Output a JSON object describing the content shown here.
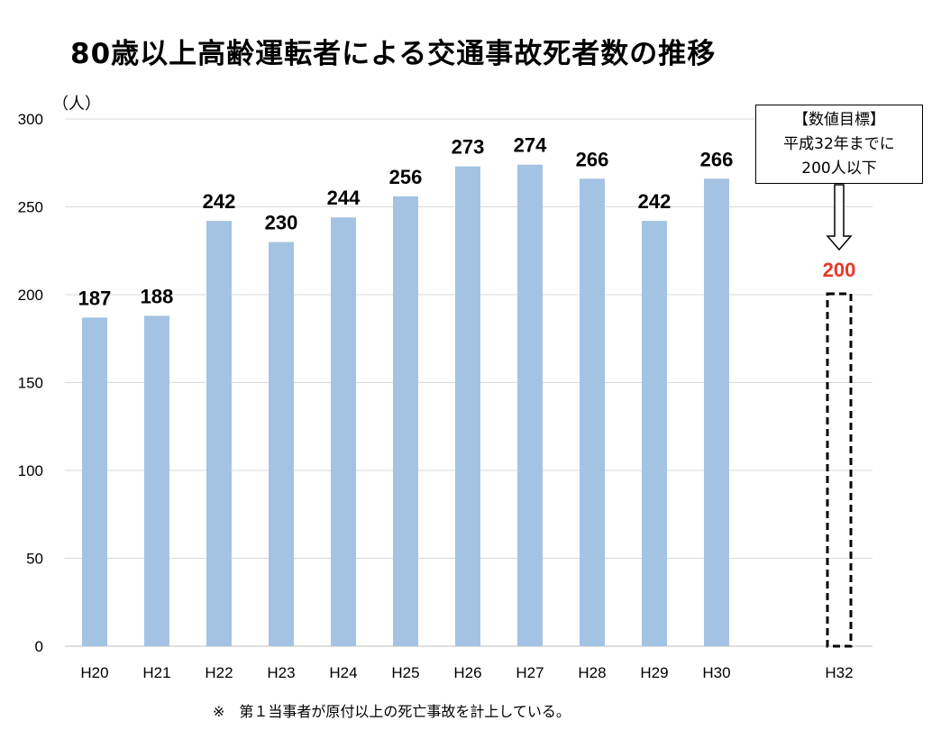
{
  "title": "80歳以上高齢運転者による交通事故死者数の推移",
  "unit_label": "（人）",
  "footnote": "※　第１当事者が原付以上の死亡事故を計上している。",
  "target_box": {
    "line1": "【数値目標】",
    "line2": "平成32年までに",
    "line3": "200人以下"
  },
  "colors": {
    "bar": "#a4c3e2",
    "target": "#e8382a",
    "grid": "#d9d9d9"
  },
  "chart_data": {
    "type": "bar",
    "title": "80歳以上高齢運転者による交通事故死者数の推移",
    "ylabel": "（人）",
    "categories": [
      "H20",
      "H21",
      "H22",
      "H23",
      "H24",
      "H25",
      "H26",
      "H27",
      "H28",
      "H29",
      "H30",
      "H32"
    ],
    "values": [
      187,
      188,
      242,
      230,
      244,
      256,
      273,
      274,
      266,
      242,
      266,
      null
    ],
    "target": {
      "category": "H32",
      "value": 200,
      "label": "200"
    },
    "yticks": [
      0,
      50,
      100,
      150,
      200,
      250,
      300
    ],
    "ylim": [
      0,
      300
    ],
    "grid": true
  }
}
